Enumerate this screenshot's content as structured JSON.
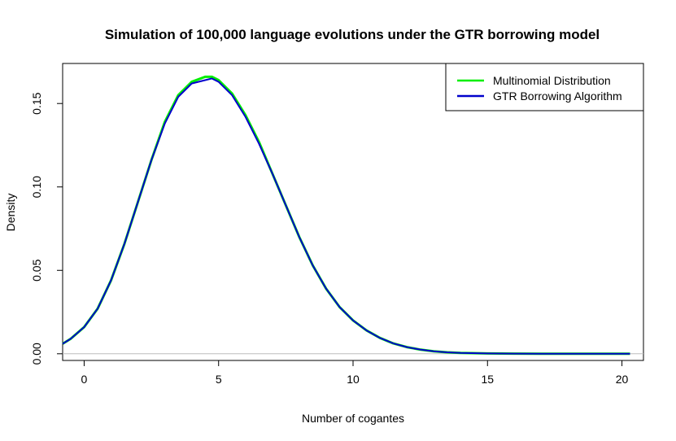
{
  "chart_data": {
    "type": "line",
    "title": "Simulation of 100,000 language evolutions under the GTR borrowing model",
    "xlabel": "Number of cogantes",
    "ylabel": "Density",
    "xlim": [
      -0.8,
      20.8
    ],
    "ylim": [
      -0.004,
      0.174
    ],
    "xticks": [
      0,
      5,
      10,
      15,
      20
    ],
    "xtick_labels": [
      "0",
      "5",
      "10",
      "15",
      "20"
    ],
    "yticks": [
      0.0,
      0.05,
      0.1,
      0.15
    ],
    "ytick_labels": [
      "0.00",
      "0.05",
      "0.10",
      "0.15"
    ],
    "grid": false,
    "legend_position": "top-right",
    "x": [
      -0.8,
      -0.5,
      0,
      0.5,
      1,
      1.5,
      2,
      2.5,
      3,
      3.5,
      4,
      4.5,
      4.75,
      5,
      5.5,
      6,
      6.5,
      7,
      7.5,
      8,
      8.5,
      9,
      9.5,
      10,
      10.5,
      11,
      11.5,
      12,
      12.5,
      13,
      13.5,
      14,
      15,
      16,
      17,
      18,
      19,
      20,
      20.3
    ],
    "series": [
      {
        "name": "Multinomial Distribution",
        "color": "#00ee00",
        "values": [
          0.006,
          0.009,
          0.016,
          0.027,
          0.044,
          0.066,
          0.091,
          0.116,
          0.139,
          0.155,
          0.163,
          0.166,
          0.166,
          0.164,
          0.156,
          0.143,
          0.127,
          0.108,
          0.089,
          0.07,
          0.053,
          0.039,
          0.028,
          0.02,
          0.014,
          0.0095,
          0.0062,
          0.004,
          0.0025,
          0.0015,
          0.0009,
          0.0005,
          0.0002,
          0.0001,
          5e-05,
          2e-05,
          1e-05,
          0.0,
          0.0
        ]
      },
      {
        "name": "GTR Borrowing Algorithm",
        "color": "#0000cc",
        "values": [
          0.006,
          0.009,
          0.016,
          0.027,
          0.044,
          0.066,
          0.091,
          0.116,
          0.138,
          0.154,
          0.162,
          0.164,
          0.165,
          0.163,
          0.155,
          0.142,
          0.126,
          0.108,
          0.089,
          0.07,
          0.053,
          0.039,
          0.028,
          0.02,
          0.014,
          0.0095,
          0.0062,
          0.004,
          0.0025,
          0.0015,
          0.0009,
          0.0005,
          0.0002,
          0.0001,
          5e-05,
          2e-05,
          1e-05,
          0.0,
          0.0
        ]
      }
    ],
    "reference_line": {
      "y": 0.0,
      "color": "#bebebe"
    }
  }
}
